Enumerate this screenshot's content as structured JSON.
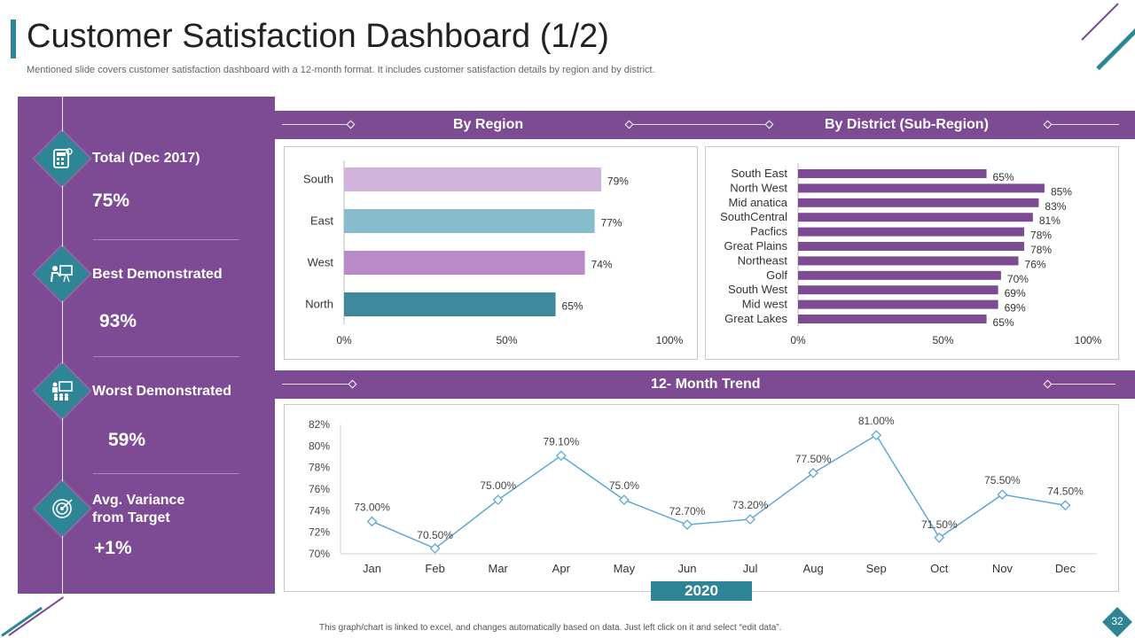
{
  "header": {
    "title": "Customer Satisfaction Dashboard (1/2)",
    "subtitle": "Mentioned slide covers customer satisfaction dashboard with a 12-month format. It includes customer satisfaction details by region and by district."
  },
  "colors": {
    "purple": "#7d4a94",
    "teal": "#2e8595",
    "lavender_light": "#d2b3dc",
    "light_blue": "#86bccb",
    "lavender_mid": "#b88ac8",
    "dark_teal": "#3f899d",
    "trend_line": "#5ea9d2"
  },
  "kpis": [
    {
      "label": "Total (Dec 2017)",
      "value": "75%",
      "icon": "calculator-icon"
    },
    {
      "label": "Best Demonstrated",
      "value": "93%",
      "icon": "presentation-icon"
    },
    {
      "label": "Worst Demonstrated",
      "value": "59%",
      "icon": "audience-icon"
    },
    {
      "label": "Avg. Variance\nfrom Target",
      "value": "+1%",
      "icon": "target-icon"
    }
  ],
  "sections": {
    "by_region": "By Region",
    "by_district": "By District  (Sub-Region)",
    "trend": "12- Month Trend"
  },
  "chart_data": [
    {
      "type": "bar",
      "orientation": "horizontal",
      "title": "By Region",
      "categories": [
        "South",
        "East",
        "West",
        "North"
      ],
      "values": [
        79,
        77,
        74,
        65
      ],
      "labels": [
        "79%",
        "77%",
        "74%",
        "65%"
      ],
      "xlim": [
        0,
        100
      ],
      "ticks": [
        "0%",
        "50%",
        "100%"
      ]
    },
    {
      "type": "bar",
      "orientation": "horizontal",
      "title": "By District  (Sub-Region)",
      "categories": [
        "South East",
        "North West",
        "Mid anatica",
        "SouthCentral",
        "Pacfics",
        "Great Plains",
        "Northeast",
        "Golf",
        "South West",
        "Mid west",
        "Great Lakes"
      ],
      "values": [
        65,
        85,
        83,
        81,
        78,
        78,
        76,
        70,
        69,
        69,
        65
      ],
      "labels": [
        "65%",
        "85%",
        "83%",
        "81%",
        "78%",
        "78%",
        "76%",
        "70%",
        "69%",
        "69%",
        "65%"
      ],
      "xlim": [
        0,
        100
      ],
      "ticks": [
        "0%",
        "50%",
        "100%"
      ]
    },
    {
      "type": "line",
      "title": "12- Month Trend",
      "categories": [
        "Jan",
        "Feb",
        "Mar",
        "Apr",
        "May",
        "Jun",
        "Jul",
        "Aug",
        "Sep",
        "Oct",
        "Nov",
        "Dec"
      ],
      "values": [
        73.0,
        70.5,
        75.0,
        79.1,
        75.0,
        72.7,
        73.2,
        77.5,
        81.0,
        71.5,
        75.5,
        74.5
      ],
      "labels": [
        "73.00%",
        "70.50%",
        "75.00%",
        "79.10%",
        "75.0%",
        "72.70%",
        "73.20%",
        "77.50%",
        "81.00%",
        "71.50%",
        "75.50%",
        "74.50%"
      ],
      "ylim": [
        70,
        82
      ],
      "yticks": [
        "70%",
        "72%",
        "74%",
        "76%",
        "78%",
        "80%",
        "82%"
      ],
      "year": "2020"
    }
  ],
  "footer": {
    "note": "This graph/chart is linked to excel, and changes automatically based on data. Just left click on it and select “edit data”.",
    "page": "32"
  }
}
